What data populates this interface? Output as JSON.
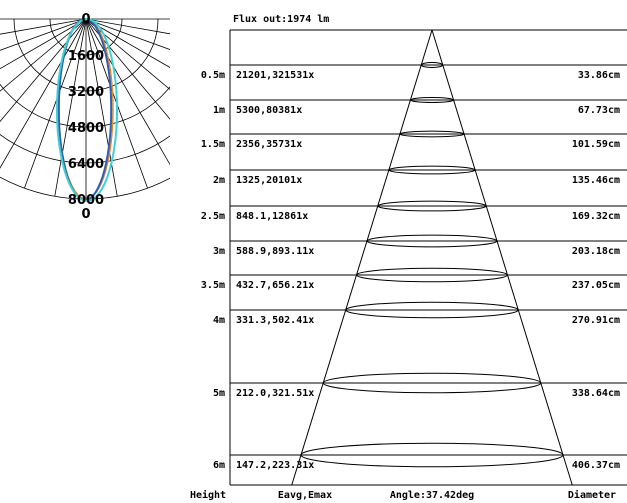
{
  "polar": {
    "top_label": "0",
    "bottom_label": "0",
    "ring_labels": [
      "1600",
      "3200",
      "4800",
      "6400",
      "8000"
    ],
    "curve_colors": [
      "#2f5fb3",
      "#40d0d8",
      "#e08a2a"
    ],
    "grid_color": "#000000"
  },
  "cone": {
    "flux": "Flux out:1974 lm",
    "rows": [
      {
        "height": "0.5m",
        "e": "21201,321531x",
        "d": "33.86cm"
      },
      {
        "height": "1m",
        "e": "5300,80381x",
        "d": "67.73cm"
      },
      {
        "height": "1.5m",
        "e": "2356,35731x",
        "d": "101.59cm"
      },
      {
        "height": "2m",
        "e": "1325,20101x",
        "d": "135.46cm"
      },
      {
        "height": "2.5m",
        "e": "848.1,12861x",
        "d": "169.32cm"
      },
      {
        "height": "3m",
        "e": "588.9,893.11x",
        "d": "203.18cm"
      },
      {
        "height": "3.5m",
        "e": "432.7,656.21x",
        "d": "237.05cm"
      },
      {
        "height": "4m",
        "e": "331.3,502.41x",
        "d": "270.91cm"
      },
      {
        "height": "5m",
        "e": "212.0,321.51x",
        "d": "338.64cm"
      },
      {
        "height": "6m",
        "e": "147.2,223.31x",
        "d": "406.37cm"
      }
    ],
    "footer": {
      "height": "Height",
      "eavg": "Eavg,Emax",
      "angle": "Angle:37.42deg",
      "diameter": "Diameter"
    }
  }
}
